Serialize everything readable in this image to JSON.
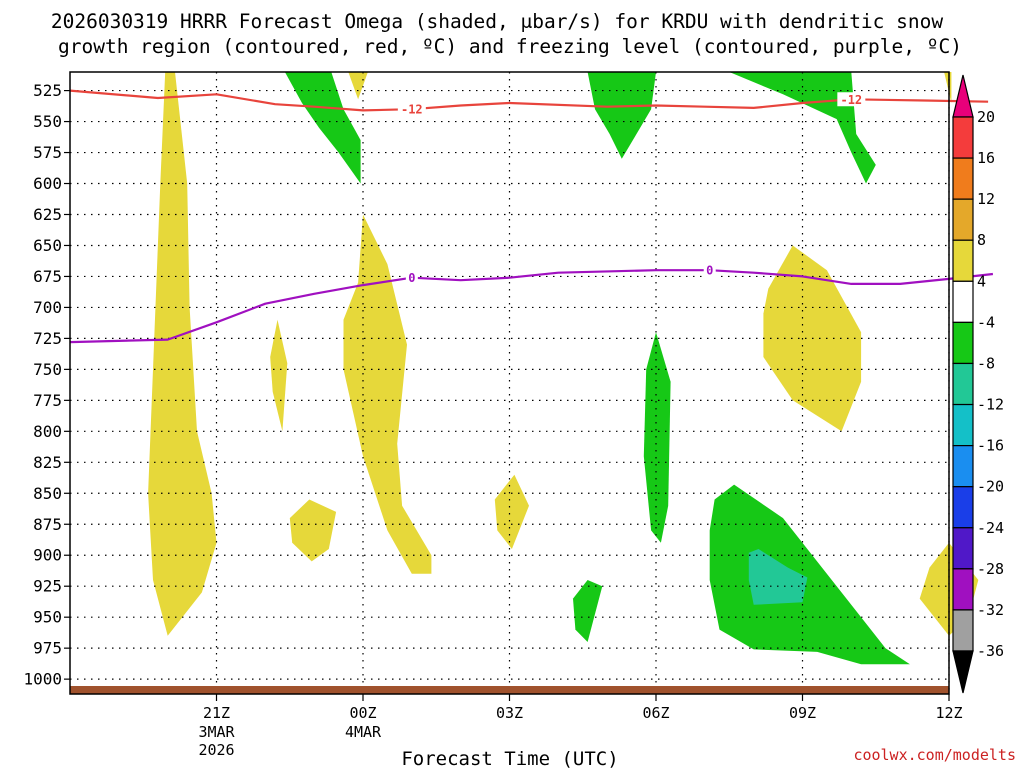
{
  "chart_data": {
    "type": "heatmap",
    "title_line1": "2026030319 HRRR Forecast Omega (shaded, μbar/s) for KRDU with dendritic snow",
    "title_line2": "growth region (contoured, red, ºC) and freezing level (contoured, purple, ºC)",
    "xlabel": "Forecast Time (UTC)",
    "credit": "coolwx.com/modelts",
    "x_range_hours": [
      -2.0,
      16.0
    ],
    "y_range_hPa": [
      510,
      1012
    ],
    "y_ticks": [
      525,
      550,
      575,
      600,
      625,
      650,
      675,
      700,
      725,
      750,
      775,
      800,
      825,
      850,
      875,
      900,
      925,
      950,
      975,
      1000
    ],
    "x_ticks": [
      {
        "h": 1,
        "label": "21Z",
        "sub1": "3MAR",
        "sub2": "2026"
      },
      {
        "h": 4,
        "label": "00Z",
        "sub1": "4MAR",
        "sub2": ""
      },
      {
        "h": 7,
        "label": "03Z",
        "sub1": "",
        "sub2": ""
      },
      {
        "h": 10,
        "label": "06Z",
        "sub1": "",
        "sub2": ""
      },
      {
        "h": 13,
        "label": "09Z",
        "sub1": "",
        "sub2": ""
      },
      {
        "h": 16,
        "label": "12Z",
        "sub1": "",
        "sub2": ""
      }
    ],
    "colorbar": {
      "top_arrow_color": "#e8007a",
      "bottom_arrow_color": "#000000",
      "bins": [
        {
          "from": 16,
          "to": 20,
          "color": "#f43c3c"
        },
        {
          "from": 12,
          "to": 16,
          "color": "#f07c1c"
        },
        {
          "from": 8,
          "to": 12,
          "color": "#e4a82a"
        },
        {
          "from": 4,
          "to": 8,
          "color": "#e6d83a"
        },
        {
          "from": -4,
          "to": 4,
          "color": "#ffffff"
        },
        {
          "from": -8,
          "to": -4,
          "color": "#16c816"
        },
        {
          "from": -12,
          "to": -8,
          "color": "#22c896"
        },
        {
          "from": -16,
          "to": -12,
          "color": "#14c0c8"
        },
        {
          "from": -20,
          "to": -16,
          "color": "#1a8ef0"
        },
        {
          "from": -24,
          "to": -20,
          "color": "#1a3ee8"
        },
        {
          "from": -28,
          "to": -24,
          "color": "#5018c8"
        },
        {
          "from": -32,
          "to": -28,
          "color": "#a010c0"
        },
        {
          "from": -36,
          "to": -32,
          "color": "#a0a0a0"
        }
      ],
      "tick_labels": [
        "20",
        "16",
        "12",
        "8",
        "4",
        "-4",
        "-8",
        "-12",
        "-16",
        "-20",
        "-24",
        "-28",
        "-32",
        "-36"
      ]
    },
    "omega_regions": [
      {
        "name": "yellow-col-1",
        "color": "#e6d83a",
        "pts": [
          [
            -0.05,
            510
          ],
          [
            0.15,
            510
          ],
          [
            0.4,
            600
          ],
          [
            0.45,
            700
          ],
          [
            0.6,
            800
          ],
          [
            0.9,
            850
          ],
          [
            1.0,
            890
          ],
          [
            0.7,
            930
          ],
          [
            0.0,
            965
          ],
          [
            -0.3,
            920
          ],
          [
            -0.4,
            850
          ],
          [
            -0.3,
            750
          ],
          [
            -0.15,
            600
          ]
        ]
      },
      {
        "name": "yellow-blob-2",
        "color": "#e6d83a",
        "pts": [
          [
            2.25,
            710
          ],
          [
            2.45,
            745
          ],
          [
            2.35,
            800
          ],
          [
            2.15,
            768
          ],
          [
            2.1,
            740
          ]
        ]
      },
      {
        "name": "yellow-blob-3",
        "color": "#e6d83a",
        "pts": [
          [
            2.5,
            870
          ],
          [
            2.9,
            855
          ],
          [
            3.45,
            865
          ],
          [
            3.3,
            895
          ],
          [
            2.95,
            905
          ],
          [
            2.55,
            890
          ]
        ]
      },
      {
        "name": "yellow-col-4",
        "color": "#e6d83a",
        "pts": [
          [
            3.9,
            680
          ],
          [
            4.0,
            625
          ],
          [
            4.5,
            665
          ],
          [
            4.9,
            730
          ],
          [
            4.7,
            810
          ],
          [
            4.8,
            860
          ],
          [
            5.4,
            900
          ],
          [
            5.4,
            915
          ],
          [
            5.0,
            915
          ],
          [
            4.5,
            880
          ],
          [
            4.0,
            820
          ],
          [
            3.6,
            750
          ],
          [
            3.6,
            710
          ]
        ]
      },
      {
        "name": "yellow-blob-5",
        "color": "#e6d83a",
        "pts": [
          [
            6.7,
            855
          ],
          [
            7.1,
            835
          ],
          [
            7.4,
            860
          ],
          [
            7.05,
            895
          ],
          [
            6.75,
            880
          ]
        ]
      },
      {
        "name": "yellow-blob-6",
        "color": "#e6d83a",
        "pts": [
          [
            12.3,
            685
          ],
          [
            12.8,
            650
          ],
          [
            13.5,
            670
          ],
          [
            14.2,
            720
          ],
          [
            14.2,
            760
          ],
          [
            13.8,
            800
          ],
          [
            12.8,
            775
          ],
          [
            12.2,
            740
          ],
          [
            12.2,
            705
          ]
        ]
      },
      {
        "name": "yellow-thin-7",
        "color": "#e6d83a",
        "pts": [
          [
            12.0,
            880
          ],
          [
            12.1,
            890
          ],
          [
            12.05,
            912
          ],
          [
            11.95,
            900
          ]
        ]
      },
      {
        "name": "yellow-blob-8",
        "color": "#e6d83a",
        "pts": [
          [
            15.6,
            910
          ],
          [
            16.0,
            890
          ],
          [
            16.6,
            920
          ],
          [
            16.4,
            950
          ],
          [
            16.0,
            965
          ],
          [
            15.4,
            935
          ]
        ]
      },
      {
        "name": "yellow-top-9",
        "color": "#e6d83a",
        "pts": [
          [
            3.7,
            510
          ],
          [
            4.1,
            510
          ],
          [
            3.9,
            532
          ]
        ]
      },
      {
        "name": "yellow-edge-10",
        "color": "#e6d83a",
        "pts": [
          [
            15.9,
            510
          ],
          [
            16.05,
            510
          ],
          [
            16.05,
            535
          ]
        ]
      },
      {
        "name": "green-col-1",
        "color": "#16c816",
        "pts": [
          [
            2.4,
            510
          ],
          [
            3.35,
            510
          ],
          [
            3.6,
            540
          ],
          [
            3.95,
            565
          ],
          [
            3.95,
            600
          ],
          [
            3.5,
            575
          ],
          [
            3.1,
            555
          ],
          [
            2.75,
            535
          ]
        ]
      },
      {
        "name": "green-col-2",
        "color": "#16c816",
        "pts": [
          [
            8.6,
            510
          ],
          [
            10.0,
            510
          ],
          [
            9.9,
            540
          ],
          [
            9.6,
            560
          ],
          [
            9.3,
            580
          ],
          [
            9.05,
            560
          ],
          [
            8.75,
            540
          ]
        ]
      },
      {
        "name": "green-col-3",
        "color": "#16c816",
        "pts": [
          [
            11.5,
            510
          ],
          [
            14.0,
            510
          ],
          [
            14.1,
            560
          ],
          [
            14.5,
            585
          ],
          [
            14.3,
            600
          ],
          [
            14.0,
            575
          ],
          [
            13.7,
            548
          ],
          [
            12.6,
            528
          ]
        ]
      },
      {
        "name": "green-col-4",
        "color": "#16c816",
        "pts": [
          [
            9.8,
            750
          ],
          [
            10.0,
            720
          ],
          [
            10.3,
            760
          ],
          [
            10.25,
            860
          ],
          [
            10.1,
            890
          ],
          [
            9.9,
            880
          ],
          [
            9.75,
            820
          ]
        ]
      },
      {
        "name": "green-blob-5",
        "color": "#16c816",
        "pts": [
          [
            8.3,
            935
          ],
          [
            8.6,
            920
          ],
          [
            8.9,
            925
          ],
          [
            8.6,
            970
          ],
          [
            8.35,
            960
          ]
        ]
      },
      {
        "name": "green-blob-6",
        "color": "#16c816",
        "pts": [
          [
            11.2,
            855
          ],
          [
            11.6,
            843
          ],
          [
            12.6,
            870
          ],
          [
            14.7,
            975
          ],
          [
            15.2,
            988
          ],
          [
            14.2,
            988
          ],
          [
            13.3,
            978
          ],
          [
            12.0,
            976
          ],
          [
            11.3,
            960
          ],
          [
            11.1,
            920
          ],
          [
            11.1,
            880
          ]
        ]
      },
      {
        "name": "teal-blob-7",
        "color": "#22c896",
        "pts": [
          [
            11.9,
            898
          ],
          [
            12.1,
            895
          ],
          [
            12.7,
            910
          ],
          [
            13.1,
            918
          ],
          [
            13.0,
            938
          ],
          [
            12.0,
            940
          ],
          [
            11.9,
            920
          ]
        ]
      }
    ],
    "contours": [
      {
        "name": "dgz-minus12-line",
        "color": "#e8443c",
        "label": "-12",
        "label_at": [
          [
            5.0,
            540
          ],
          [
            14.0,
            532
          ]
        ],
        "pts": [
          [
            -2,
            525
          ],
          [
            -0.2,
            531
          ],
          [
            1.0,
            528
          ],
          [
            2.2,
            536
          ],
          [
            3.0,
            538
          ],
          [
            4.0,
            541
          ],
          [
            5.0,
            540
          ],
          [
            6.0,
            537
          ],
          [
            7.0,
            535
          ],
          [
            9.0,
            538
          ],
          [
            10.0,
            537
          ],
          [
            11.0,
            538
          ],
          [
            12.0,
            539
          ],
          [
            13.0,
            535
          ],
          [
            14.0,
            532
          ],
          [
            15.5,
            533
          ],
          [
            16.8,
            534
          ]
        ]
      },
      {
        "name": "freezing-level-line",
        "color": "#a010c0",
        "label": "0",
        "label_at": [
          [
            5.0,
            676
          ],
          [
            11.1,
            670
          ]
        ],
        "pts": [
          [
            -2,
            728
          ],
          [
            0,
            726
          ],
          [
            1.0,
            712
          ],
          [
            2.0,
            697
          ],
          [
            3.0,
            689
          ],
          [
            4.0,
            682
          ],
          [
            5.0,
            676
          ],
          [
            6.0,
            678
          ],
          [
            7.0,
            676
          ],
          [
            8.0,
            672
          ],
          [
            10.0,
            670
          ],
          [
            11.1,
            670
          ],
          [
            12.0,
            672
          ],
          [
            13.0,
            675
          ],
          [
            14.0,
            681
          ],
          [
            15.0,
            681
          ],
          [
            16.0,
            677
          ],
          [
            16.9,
            673
          ]
        ]
      }
    ]
  }
}
